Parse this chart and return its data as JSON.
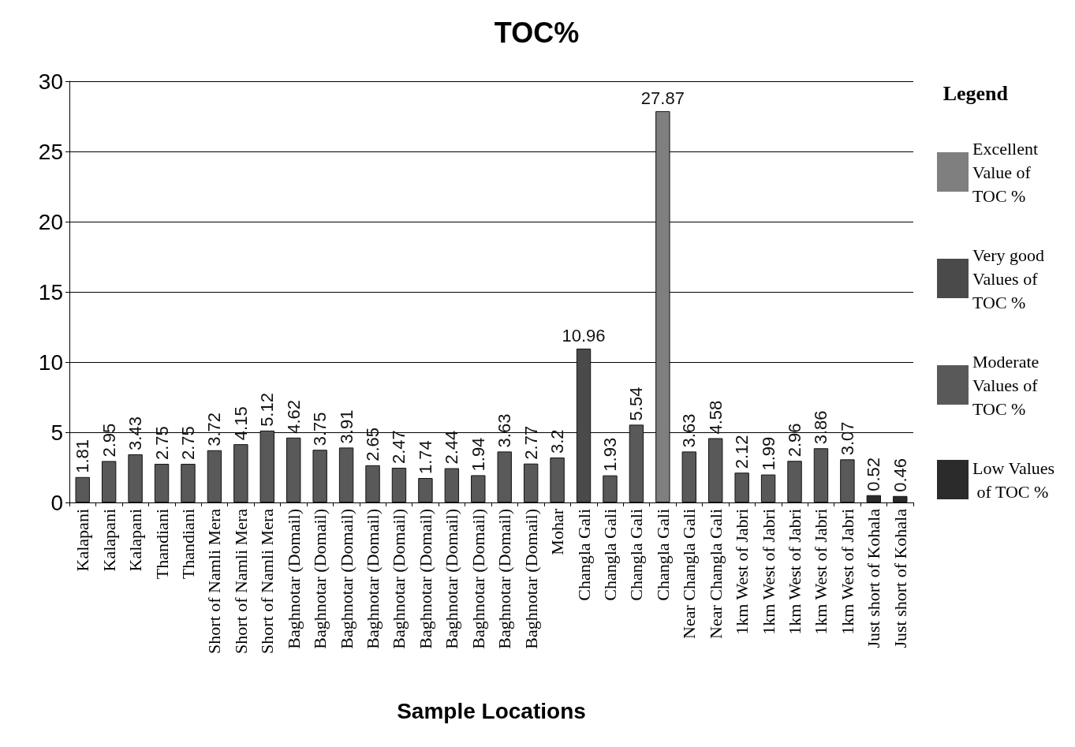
{
  "chart_data": {
    "type": "bar",
    "title": "TOC%",
    "xlabel": "Sample Locations",
    "legend_title": "Legend",
    "categories": [
      "Kalapani",
      "Kalapani",
      "Kalapani",
      "Thandiani",
      "Thandiani",
      "Short of Namli Mera",
      "Short of Namli Mera",
      "Short of Namli Mera",
      "Baghnotar (Domail)",
      "Baghnotar (Domail)",
      "Baghnotar (Domail)",
      "Baghnotar (Domail)",
      "Baghnotar (Domail)",
      "Baghnotar (Domail)",
      "Baghnotar (Domail)",
      "Baghnotar (Domail)",
      "Baghnotar (Domail)",
      "Baghnotar (Domail)",
      "Mohar",
      "Changla Gali",
      "Changla Gali",
      "Changla Gali",
      "Changla Gali",
      "Near Changla Gali",
      "Near Changla Gali",
      "1km West of Jabri",
      "1km West of Jabri",
      "1km West of Jabri",
      "1km West of Jabri",
      "1km West of Jabri",
      "Just short of Kohala",
      "Just short of Kohala"
    ],
    "series": [
      {
        "name": "Excellent Value of TOC %",
        "color": "#7f7f7f",
        "values": [
          null,
          null,
          null,
          null,
          null,
          null,
          null,
          null,
          null,
          null,
          null,
          null,
          null,
          null,
          null,
          null,
          null,
          null,
          null,
          null,
          null,
          null,
          27.87,
          null,
          null,
          null,
          null,
          null,
          null,
          null,
          null,
          null
        ]
      },
      {
        "name": "Very good Values of TOC %",
        "color": "#4a4a4a",
        "values": [
          null,
          null,
          null,
          null,
          null,
          null,
          null,
          null,
          null,
          null,
          null,
          null,
          null,
          null,
          null,
          null,
          null,
          null,
          null,
          10.96,
          null,
          null,
          null,
          null,
          null,
          null,
          null,
          null,
          null,
          null,
          null,
          null
        ]
      },
      {
        "name": "Moderate Values of TOC %",
        "color": "#595959",
        "values": [
          1.81,
          2.95,
          3.43,
          2.75,
          2.75,
          3.72,
          4.15,
          5.12,
          4.62,
          3.75,
          3.91,
          2.65,
          2.47,
          1.74,
          2.44,
          1.94,
          3.63,
          2.77,
          3.2,
          null,
          1.93,
          5.54,
          null,
          3.63,
          4.58,
          2.12,
          1.99,
          2.96,
          3.86,
          3.07,
          null,
          null
        ]
      },
      {
        "name": "Low Values of TOC %",
        "color": "#2b2b2b",
        "values": [
          null,
          null,
          null,
          null,
          null,
          null,
          null,
          null,
          null,
          null,
          null,
          null,
          null,
          null,
          null,
          null,
          null,
          null,
          null,
          null,
          null,
          null,
          null,
          null,
          null,
          null,
          null,
          null,
          null,
          null,
          0.52,
          0.46
        ]
      }
    ],
    "stacked": true,
    "ylim": [
      0,
      30
    ],
    "yticks": [
      0,
      5,
      10,
      15,
      20,
      25,
      30
    ],
    "grid": "y",
    "legend": "right",
    "data_labels": true
  }
}
